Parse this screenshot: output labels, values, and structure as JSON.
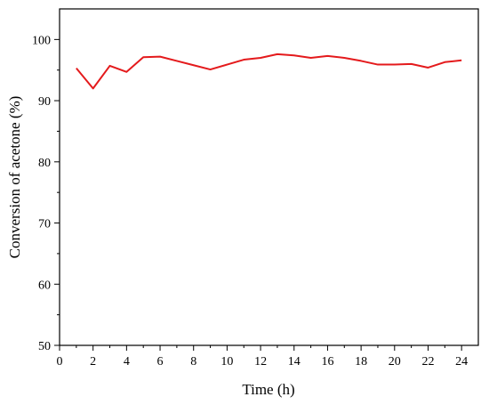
{
  "chart_data": {
    "type": "line",
    "title": "",
    "xlabel": "Time (h)",
    "ylabel": "Conversion of acetone (%)",
    "xlim": [
      0,
      25
    ],
    "ylim": [
      50,
      105
    ],
    "x_ticks": [
      0,
      2,
      4,
      6,
      8,
      10,
      12,
      14,
      16,
      18,
      20,
      22,
      24
    ],
    "y_ticks": [
      50,
      60,
      70,
      80,
      90,
      100
    ],
    "grid": false,
    "legend": "none",
    "series": [
      {
        "color": "#e41a1c",
        "x": [
          1,
          2,
          3,
          4,
          5,
          6,
          7,
          8,
          9,
          10,
          11,
          12,
          13,
          14,
          15,
          16,
          17,
          18,
          19,
          20,
          21,
          22,
          23,
          24
        ],
        "y": [
          95.3,
          92.0,
          95.7,
          94.7,
          97.1,
          97.2,
          96.5,
          95.8,
          95.1,
          95.9,
          96.7,
          97.0,
          97.6,
          97.4,
          97.0,
          97.3,
          97.0,
          96.5,
          95.9,
          95.9,
          96.0,
          95.4,
          96.3,
          96.6
        ]
      }
    ]
  }
}
